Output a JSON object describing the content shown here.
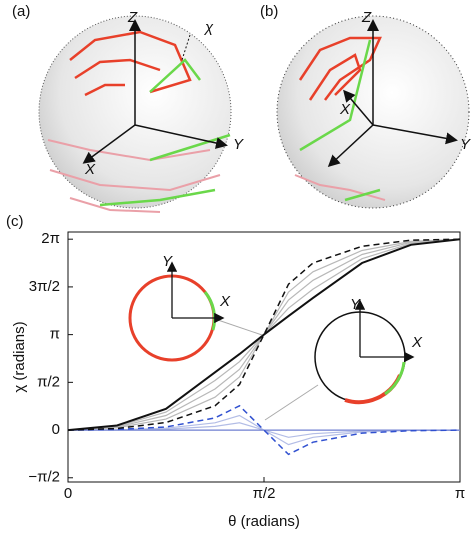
{
  "panels": [
    {
      "label": "(a)",
      "axis_labels": [
        "Z",
        "Y",
        "X",
        "χ"
      ]
    },
    {
      "label": "(b)",
      "axis_labels": [
        "Z",
        "Y",
        "X"
      ]
    }
  ],
  "chart_data": {
    "type": "line",
    "label": "(c)",
    "x_label": "θ (radians)",
    "y_label": "χ (radians)",
    "xlim": [
      0,
      3.1416
    ],
    "ylim": [
      -1.71,
      6.52
    ],
    "xticks": [
      0,
      {
        "value": 1.5708,
        "label": "π/2"
      },
      {
        "value": 3.1416,
        "label": "π"
      }
    ],
    "yticks": [
      {
        "value": -1.5708,
        "label": "−π/2"
      },
      0,
      {
        "value": 1.5708,
        "label": "π/2"
      },
      {
        "value": 3.1416,
        "label": "π"
      },
      {
        "value": 4.7124,
        "label": "3π/2"
      },
      {
        "value": 6.2832,
        "label": "2π"
      }
    ],
    "x": [
      0,
      0.3927,
      0.7854,
      1.1781,
      1.3744,
      1.5708,
      1.7671,
      1.9635,
      2.3562,
      2.7489,
      3.1416
    ],
    "series": [
      {
        "color": "#b8b8b8",
        "dashed": false,
        "width": 1.2,
        "values": [
          0,
          0.125,
          0.59,
          1.63,
          2.25,
          3.1416,
          4.01,
          4.64,
          5.64,
          6.14,
          6.2832
        ]
      },
      {
        "color": "#b8b8b8",
        "dashed": false,
        "width": 1.2,
        "values": [
          0,
          0.1,
          0.48,
          1.35,
          2.0,
          3.1416,
          4.28,
          4.93,
          5.78,
          6.18,
          6.2832
        ]
      },
      {
        "color": "#b8b8b8",
        "dashed": false,
        "width": 1.2,
        "values": [
          0,
          0.075,
          0.36,
          1.08,
          1.75,
          3.1416,
          4.54,
          5.21,
          5.91,
          6.21,
          6.2832
        ]
      },
      {
        "color": "#b3bde6",
        "dashed": false,
        "width": 1.2,
        "values": [
          0,
          0.01,
          0.03,
          0.12,
          0.24,
          0,
          -0.24,
          -0.12,
          -0.03,
          -0.01,
          0
        ]
      },
      {
        "color": "#b3bde6",
        "dashed": false,
        "width": 1.2,
        "values": [
          0,
          0.01,
          0.06,
          0.24,
          0.48,
          0,
          -0.48,
          -0.24,
          -0.06,
          -0.01,
          0
        ]
      },
      {
        "color": "#6f7fd0",
        "dashed": false,
        "width": 1.2,
        "values": [
          0,
          0,
          0,
          0,
          0,
          0,
          0,
          0,
          0,
          0,
          0
        ]
      },
      {
        "color": "#3050d0",
        "dashed": true,
        "width": 1.5,
        "values": [
          0,
          0.02,
          0.1,
          0.4,
          0.8,
          0,
          -0.8,
          -0.4,
          -0.1,
          -0.02,
          0
        ]
      },
      {
        "color": "#111111",
        "dashed": true,
        "width": 1.5,
        "values": [
          0,
          0.05,
          0.25,
          0.8,
          1.5,
          3.1416,
          4.8,
          5.5,
          6.05,
          6.25,
          6.2832
        ]
      },
      {
        "color": "#111111",
        "dashed": false,
        "width": 2,
        "values": [
          0,
          0.15,
          0.7,
          1.9,
          2.5,
          3.1416,
          3.75,
          4.35,
          5.5,
          6.1,
          6.2832
        ]
      }
    ]
  },
  "insets": [
    {
      "y_label": "Y",
      "x_label": "X"
    },
    {
      "y_label": "Y",
      "x_label": "X"
    }
  ]
}
